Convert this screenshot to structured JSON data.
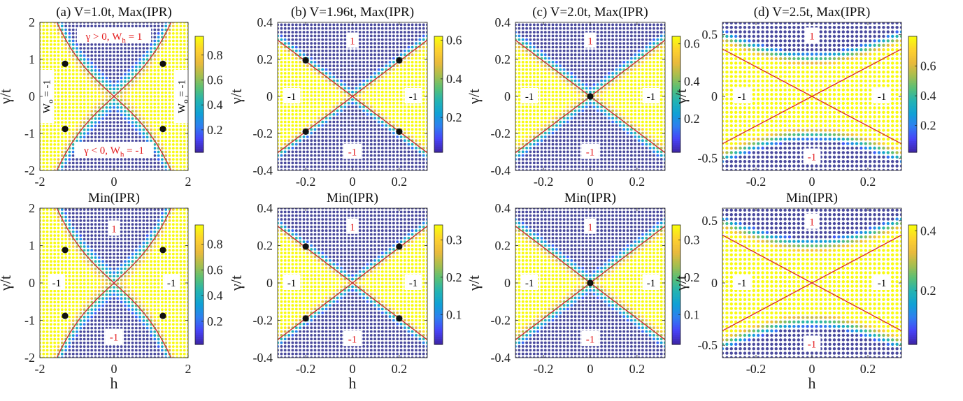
{
  "colors": {
    "colormap": [
      "#3e26a8",
      "#4743f8",
      "#2f7ef0",
      "#10a0d6",
      "#23b3b3",
      "#57bf77",
      "#a6be4f",
      "#e9ba3c",
      "#fdd02f",
      "#f9fb0e"
    ],
    "dot_low": "#4a4a9e",
    "boundary_line": "#d62a2a",
    "critical_point": "#111111",
    "region_label": "#e41a1c"
  },
  "chart_data": [
    {
      "type": "heatmap",
      "title": "(a) V=1.0t, Max(IPR)",
      "ylabel": "γ/t",
      "xlim": [
        -2,
        2
      ],
      "ylim": [
        -2,
        2
      ],
      "xticks": [
        -2,
        0,
        2
      ],
      "xtick_labels": [
        "-2",
        "0",
        "2"
      ],
      "yticks": [
        -2,
        -1,
        0,
        1,
        2
      ],
      "ytick_labels": [
        "-2",
        "-1",
        "0",
        "1",
        "2"
      ],
      "model": {
        "kind": "sinh",
        "k": 0.9,
        "width": 0.18,
        "dot_step": 0.1
      },
      "colorbar": {
        "min": 0.02,
        "max": 0.95,
        "ticks": [
          0.2,
          0.4,
          0.6,
          0.8
        ],
        "tick_labels": [
          "0.2",
          "0.4",
          "0.6",
          "0.8"
        ]
      },
      "critical_points": [
        [
          -1.32,
          0.88
        ],
        [
          1.32,
          0.88
        ],
        [
          -1.32,
          -0.88
        ],
        [
          1.32,
          -0.88
        ]
      ],
      "region_labels": [
        {
          "text": "γ > 0, W",
          "sub": "h",
          "tail": " = 1",
          "x": 0,
          "y": 1.62,
          "color": "red"
        },
        {
          "text": "γ < 0, W",
          "sub": "h",
          "tail": " = -1",
          "x": 0,
          "y": -1.45,
          "color": "red"
        }
      ],
      "vertical_labels": [
        {
          "text": "W",
          "sub": "o",
          "tail": " = -1",
          "x": -1.82,
          "y": 0
        },
        {
          "text": "W",
          "sub": "o",
          "tail": " = -1",
          "x": 1.82,
          "y": 0
        }
      ]
    },
    {
      "type": "heatmap",
      "title": "(b) V=1.96t, Max(IPR)",
      "ylabel": "γ/t",
      "xlim": [
        -0.32,
        0.32
      ],
      "ylim": [
        -0.4,
        0.4
      ],
      "xticks": [
        -0.2,
        0,
        0.2
      ],
      "xtick_labels": [
        "-0.2",
        "0",
        "0.2"
      ],
      "yticks": [
        -0.4,
        -0.2,
        0,
        0.2,
        0.4
      ],
      "ytick_labels": [
        "-0.4",
        "-0.2",
        "0",
        "0.2",
        "0.4"
      ],
      "model": {
        "kind": "linear",
        "slope": 0.95,
        "offset": 0.0,
        "width": 0.04,
        "dot_step": 0.016
      },
      "colorbar": {
        "min": 0.02,
        "max": 0.62,
        "ticks": [
          0.2,
          0.4,
          0.6
        ],
        "tick_labels": [
          "0.2",
          "0.4",
          "0.6"
        ]
      },
      "critical_points": [
        [
          -0.2,
          0.195
        ],
        [
          0.2,
          0.195
        ],
        [
          -0.2,
          -0.19
        ],
        [
          0.2,
          -0.19
        ]
      ],
      "region_labels": [
        {
          "text": "1",
          "x": 0,
          "y": 0.3,
          "color": "red"
        },
        {
          "text": "-1",
          "x": -0.26,
          "y": 0,
          "color": "black"
        },
        {
          "text": "-1",
          "x": 0.26,
          "y": 0,
          "color": "black"
        },
        {
          "text": "-1",
          "x": 0,
          "y": -0.3,
          "color": "red"
        }
      ]
    },
    {
      "type": "heatmap",
      "title": "(c) V=2.0t, Max(IPR)",
      "ylabel": "γ/t",
      "xlim": [
        -0.32,
        0.32
      ],
      "ylim": [
        -0.4,
        0.4
      ],
      "xticks": [
        -0.2,
        0,
        0.2
      ],
      "xtick_labels": [
        "-0.2",
        "0",
        "0.2"
      ],
      "yticks": [
        -0.4,
        -0.2,
        0,
        0.2,
        0.4
      ],
      "ytick_labels": [
        "-0.4",
        "-0.2",
        "0",
        "0.2",
        "0.4"
      ],
      "model": {
        "kind": "linear",
        "slope": 0.95,
        "offset": 0.0,
        "width": 0.05,
        "dot_step": 0.016
      },
      "colorbar": {
        "min": 0.02,
        "max": 0.64,
        "ticks": [
          0.2,
          0.4,
          0.6
        ],
        "tick_labels": [
          "0.2",
          "0.4",
          "0.6"
        ]
      },
      "critical_points": [
        [
          0,
          0
        ]
      ],
      "region_labels": [
        {
          "text": "1",
          "x": 0,
          "y": 0.3,
          "color": "red"
        },
        {
          "text": "-1",
          "x": -0.26,
          "y": 0,
          "color": "black"
        },
        {
          "text": "-1",
          "x": 0.26,
          "y": 0,
          "color": "black"
        },
        {
          "text": "-1",
          "x": 0,
          "y": -0.3,
          "color": "red"
        }
      ]
    },
    {
      "type": "heatmap",
      "title": "(d) V=2.5t, Max(IPR)",
      "ylabel": "γ/t",
      "xlim": [
        -0.32,
        0.32
      ],
      "ylim": [
        -0.6,
        0.6
      ],
      "xticks": [
        -0.2,
        0,
        0.2
      ],
      "xtick_labels": [
        "-0.2",
        "0",
        "0.2"
      ],
      "yticks": [
        -0.5,
        0,
        0.5
      ],
      "ytick_labels": [
        "-0.5",
        "0",
        "0.5"
      ],
      "model": {
        "kind": "hyper",
        "a": 1.2,
        "c": 0.3,
        "dot_step": 0.016
      },
      "colorbar": {
        "min": 0.02,
        "max": 0.8,
        "ticks": [
          0.2,
          0.4,
          0.6
        ],
        "tick_labels": [
          "0.2",
          "0.4",
          "0.6"
        ]
      },
      "critical_points": [],
      "region_labels": [
        {
          "text": "1",
          "x": 0,
          "y": 0.49,
          "color": "red"
        },
        {
          "text": "-1",
          "x": -0.25,
          "y": 0,
          "color": "black"
        },
        {
          "text": "-1",
          "x": 0.25,
          "y": 0,
          "color": "black"
        },
        {
          "text": "-1",
          "x": 0,
          "y": -0.49,
          "color": "red"
        }
      ]
    },
    {
      "type": "heatmap",
      "title": "Min(IPR)",
      "xlabel": "h",
      "ylabel": "γ/t",
      "xlim": [
        -2,
        2
      ],
      "ylim": [
        -2,
        2
      ],
      "xticks": [
        -2,
        0,
        2
      ],
      "xtick_labels": [
        "-2",
        "0",
        "2"
      ],
      "yticks": [
        -2,
        -1,
        0,
        1,
        2
      ],
      "ytick_labels": [
        "-2",
        "-1",
        "0",
        "1",
        "2"
      ],
      "model": {
        "kind": "sinh",
        "k": 0.9,
        "width": 0.18,
        "dot_step": 0.1
      },
      "colorbar": {
        "min": 0.02,
        "max": 0.95,
        "ticks": [
          0.2,
          0.4,
          0.6,
          0.8
        ],
        "tick_labels": [
          "0.2",
          "0.4",
          "0.6",
          "0.8"
        ]
      },
      "critical_points": [
        [
          -1.32,
          0.88
        ],
        [
          1.32,
          0.88
        ],
        [
          -1.32,
          -0.88
        ],
        [
          1.32,
          -0.88
        ]
      ],
      "region_labels": [
        {
          "text": "1",
          "x": 0,
          "y": 1.45,
          "color": "red"
        },
        {
          "text": "-1",
          "x": -1.55,
          "y": 0,
          "color": "black"
        },
        {
          "text": "-1",
          "x": 1.55,
          "y": 0,
          "color": "black"
        },
        {
          "text": "-1",
          "x": 0,
          "y": -1.45,
          "color": "red"
        }
      ]
    },
    {
      "type": "heatmap",
      "title": "Min(IPR)",
      "xlabel": "h",
      "ylabel": "γ/t",
      "xlim": [
        -0.32,
        0.32
      ],
      "ylim": [
        -0.4,
        0.4
      ],
      "xticks": [
        -0.2,
        0,
        0.2
      ],
      "xtick_labels": [
        "-0.2",
        "0",
        "0.2"
      ],
      "yticks": [
        -0.4,
        -0.2,
        0,
        0.2,
        0.4
      ],
      "ytick_labels": [
        "-0.4",
        "-0.2",
        "0",
        "0.2",
        "0.4"
      ],
      "model": {
        "kind": "linear",
        "slope": 0.95,
        "offset": 0.0,
        "width": 0.04,
        "dot_step": 0.016
      },
      "colorbar": {
        "min": 0.02,
        "max": 0.34,
        "ticks": [
          0.1,
          0.2,
          0.3
        ],
        "tick_labels": [
          "0.1",
          "0.2",
          "0.3"
        ]
      },
      "critical_points": [
        [
          -0.2,
          0.195
        ],
        [
          0.2,
          0.195
        ],
        [
          -0.2,
          -0.19
        ],
        [
          0.2,
          -0.19
        ]
      ],
      "region_labels": [
        {
          "text": "1",
          "x": 0,
          "y": 0.3,
          "color": "red"
        },
        {
          "text": "-1",
          "x": -0.26,
          "y": 0,
          "color": "black"
        },
        {
          "text": "-1",
          "x": 0.26,
          "y": 0,
          "color": "black"
        },
        {
          "text": "-1",
          "x": 0,
          "y": -0.3,
          "color": "red"
        }
      ]
    },
    {
      "type": "heatmap",
      "title": "Min(IPR)",
      "xlabel": "",
      "ylabel": "γ/t",
      "xlim": [
        -0.32,
        0.32
      ],
      "ylim": [
        -0.4,
        0.4
      ],
      "xticks": [
        -0.2,
        0,
        0.2
      ],
      "xtick_labels": [
        "-0.2",
        "0",
        "0.2"
      ],
      "yticks": [
        -0.4,
        -0.2,
        0,
        0.2,
        0.4
      ],
      "ytick_labels": [
        "-0.4",
        "-0.2",
        "0",
        "0.2",
        "0.4"
      ],
      "model": {
        "kind": "linear",
        "slope": 0.95,
        "offset": 0.0,
        "width": 0.05,
        "dot_step": 0.016
      },
      "colorbar": {
        "min": 0.02,
        "max": 0.34,
        "ticks": [
          0.1,
          0.2,
          0.3
        ],
        "tick_labels": [
          "0.1",
          "0.2",
          "0.3"
        ]
      },
      "critical_points": [
        [
          0,
          0
        ]
      ],
      "region_labels": [
        {
          "text": "1",
          "x": 0,
          "y": 0.3,
          "color": "red"
        },
        {
          "text": "-1",
          "x": -0.26,
          "y": 0,
          "color": "black"
        },
        {
          "text": "-1",
          "x": 0.26,
          "y": 0,
          "color": "black"
        },
        {
          "text": "-1",
          "x": 0,
          "y": -0.3,
          "color": "red"
        }
      ]
    },
    {
      "type": "heatmap",
      "title": "Min(IPR)",
      "xlabel": "h",
      "ylabel": "γ/t",
      "xlim": [
        -0.32,
        0.32
      ],
      "ylim": [
        -0.6,
        0.6
      ],
      "xticks": [
        -0.2,
        0,
        0.2
      ],
      "xtick_labels": [
        "-0.2",
        "0",
        "0.2"
      ],
      "yticks": [
        -0.5,
        0,
        0.5
      ],
      "ytick_labels": [
        "-0.5",
        "0",
        "0.5"
      ],
      "model": {
        "kind": "hyper",
        "a": 1.2,
        "c": 0.3,
        "dot_step": 0.016
      },
      "colorbar": {
        "min": 0.02,
        "max": 0.42,
        "ticks": [
          0.2,
          0.4
        ],
        "tick_labels": [
          "0.2",
          "0.4"
        ]
      },
      "critical_points": [],
      "region_labels": [
        {
          "text": "1",
          "x": 0,
          "y": 0.49,
          "color": "red"
        },
        {
          "text": "-1",
          "x": -0.25,
          "y": 0,
          "color": "black"
        },
        {
          "text": "-1",
          "x": 0.25,
          "y": 0,
          "color": "black"
        },
        {
          "text": "-1",
          "x": 0,
          "y": -0.49,
          "color": "red"
        }
      ]
    }
  ]
}
